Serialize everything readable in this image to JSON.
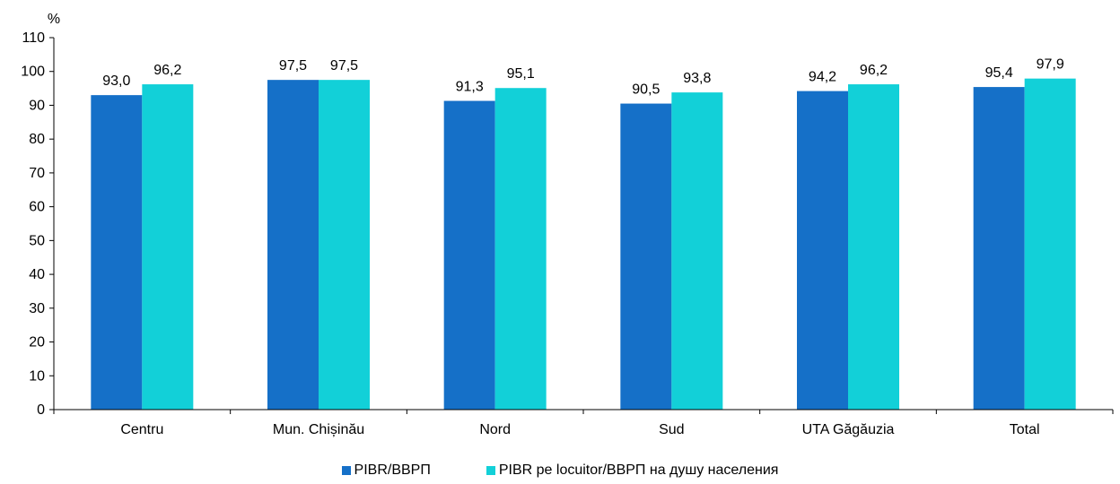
{
  "chart_data": {
    "type": "bar",
    "ylabel": "%",
    "ylim": [
      0,
      110
    ],
    "yticks": [
      0,
      10,
      20,
      30,
      40,
      50,
      60,
      70,
      80,
      90,
      100,
      110
    ],
    "categories": [
      "Centru",
      "Mun. Chișinău",
      "Nord",
      "Sud",
      "UTA Găgăuzia",
      "Total"
    ],
    "series": [
      {
        "name": "PIBR/ВВРП",
        "color": "#1570C8",
        "values": [
          93.0,
          97.5,
          91.3,
          90.5,
          94.2,
          95.4
        ],
        "labels": [
          "93,0",
          "97,5",
          "91,3",
          "90,5",
          "94,2",
          "95,4"
        ]
      },
      {
        "name": "PIBR pe locuitor/ВВРП на душу населения",
        "color": "#12D0D8",
        "values": [
          96.2,
          97.5,
          95.1,
          93.8,
          96.2,
          97.9
        ],
        "labels": [
          "96,2",
          "97,5",
          "95,1",
          "93,8",
          "96,2",
          "97,9"
        ]
      }
    ],
    "grid": false,
    "legend": "bottom-center"
  }
}
